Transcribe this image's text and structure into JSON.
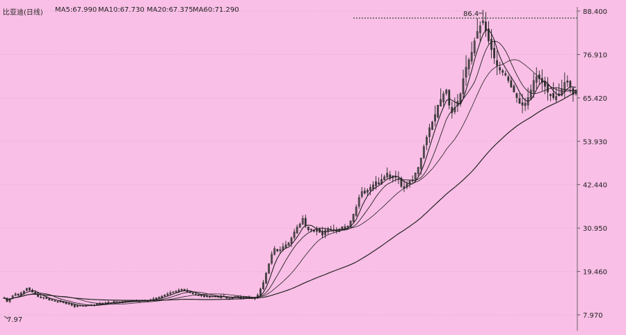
{
  "header": {
    "title": "比亚迪(日线)",
    "ma5": "MA5:67.990",
    "ma10": "MA10:67.730",
    "ma20": "MA20:67.375",
    "ma60": "MA60:71.290"
  },
  "chart_data": {
    "type": "candlestick",
    "yticks": [
      "88.400",
      "76.910",
      "65.420",
      "53.930",
      "42.440",
      "30.950",
      "19.460",
      "7.970"
    ],
    "ylim": [
      7.97,
      88.4
    ],
    "grid": true,
    "annotations": {
      "high_label": "86.4",
      "low_label": "7.97"
    },
    "colors": {
      "background": "#f9bfe6",
      "candle": "#333333",
      "ma": "#222222",
      "grid": "#d7a8c6",
      "ref": "#777777"
    },
    "close": [
      12.5,
      11.5,
      12.3,
      13.0,
      13.5,
      13.2,
      13.8,
      14.3,
      15.0,
      14.5,
      14.0,
      13.5,
      12.8,
      12.5,
      12.6,
      12.3,
      11.9,
      11.8,
      11.6,
      11.5,
      11.4,
      11.2,
      10.9,
      11.0,
      10.5,
      10.1,
      10.4,
      10.5,
      10.3,
      10.4,
      10.6,
      10.4,
      10.6,
      10.9,
      11.0,
      11.1,
      11.0,
      11.3,
      11.2,
      11.5,
      11.4,
      11.2,
      11.5,
      11.6,
      11.6,
      11.7,
      11.7,
      11.5,
      11.6,
      11.8,
      11.6,
      11.8,
      12.0,
      12.2,
      12.5,
      12.6,
      12.9,
      13.2,
      13.5,
      13.8,
      14.0,
      14.2,
      14.5,
      14.7,
      14.4,
      14.1,
      13.8,
      13.5,
      13.3,
      13.2,
      13.0,
      12.8,
      12.9,
      12.8,
      12.9,
      12.8,
      12.6,
      12.9,
      12.8,
      12.4,
      12.2,
      12.6,
      12.8,
      12.7,
      12.4,
      12.5,
      12.8,
      12.4,
      12.3,
      12.5,
      13.2,
      14.8,
      16.5,
      19.0,
      21.5,
      24.0,
      25.5,
      24.9,
      25.2,
      26.0,
      26.5,
      27.0,
      28.3,
      29.9,
      31.2,
      32.0,
      33.5,
      31.5,
      30.5,
      30.7,
      30.1,
      30.5,
      29.8,
      29.1,
      30.3,
      30.8,
      30.7,
      30.4,
      30.3,
      30.6,
      31.3,
      30.9,
      31.5,
      32.8,
      34.6,
      36.5,
      39.0,
      40.6,
      40.2,
      41.0,
      41.7,
      42.4,
      43.2,
      42.6,
      43.8,
      44.5,
      45.5,
      44.2,
      44.8,
      44.4,
      43.8,
      42.0,
      41.5,
      42.6,
      43.4,
      43.7,
      45.5,
      47.0,
      49.5,
      52.5,
      55.0,
      57.5,
      59.0,
      61.0,
      63.5,
      65.0,
      66.5,
      67.5,
      63.5,
      61.5,
      62.8,
      64.5,
      66.5,
      70.5,
      73.5,
      75.5,
      77.5,
      80.5,
      83.0,
      84.5,
      85.8,
      83.2,
      80.5,
      78.2,
      76.0,
      74.0,
      72.8,
      72.2,
      71.5,
      70.0,
      68.3,
      67.0,
      65.5,
      64.0,
      63.5,
      64.0,
      65.5,
      67.5,
      70.0,
      71.0,
      70.5,
      69.5,
      68.5,
      67.0,
      66.0,
      65.5,
      65.8,
      66.5,
      67.8,
      69.5,
      69.6,
      68.4,
      66.3,
      67.5
    ]
  }
}
